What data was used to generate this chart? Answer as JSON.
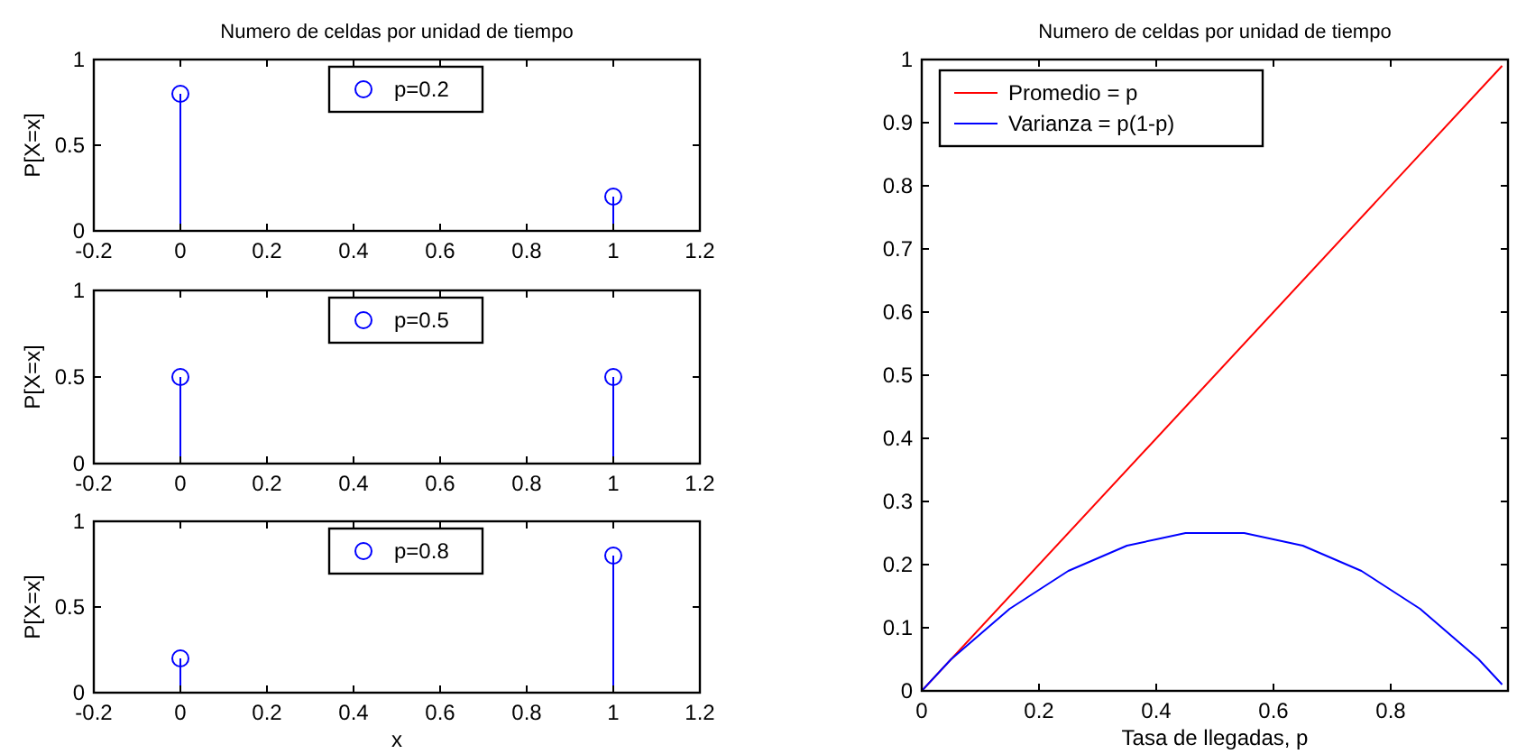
{
  "chart_data": [
    {
      "type": "lollipop",
      "title": "Numero de celdas por unidad de tiempo",
      "ylabel": "P[X=x]",
      "xlim": [
        -0.2,
        1.2
      ],
      "xticks": [
        -0.2,
        0,
        0.2,
        0.4,
        0.6,
        0.8,
        1,
        1.2
      ],
      "ylim": [
        0,
        1
      ],
      "yticks": [
        0,
        0.5,
        1
      ],
      "marker": "circle",
      "legend": "top",
      "series": [
        {
          "name": "p=0.2",
          "color": "#0000ff",
          "x": [
            0,
            1
          ],
          "values": [
            0.8,
            0.2
          ]
        }
      ]
    },
    {
      "type": "lollipop",
      "ylabel": "P[X=x]",
      "xlim": [
        -0.2,
        1.2
      ],
      "xticks": [
        -0.2,
        0,
        0.2,
        0.4,
        0.6,
        0.8,
        1,
        1.2
      ],
      "ylim": [
        0,
        1
      ],
      "yticks": [
        0,
        0.5,
        1
      ],
      "marker": "circle",
      "legend": "top",
      "series": [
        {
          "name": "p=0.5",
          "color": "#0000ff",
          "x": [
            0,
            1
          ],
          "values": [
            0.5,
            0.5
          ]
        }
      ]
    },
    {
      "type": "lollipop",
      "xlabel": "x",
      "ylabel": "P[X=x]",
      "xlim": [
        -0.2,
        1.2
      ],
      "xticks": [
        -0.2,
        0,
        0.2,
        0.4,
        0.6,
        0.8,
        1,
        1.2
      ],
      "ylim": [
        0,
        1
      ],
      "yticks": [
        0,
        0.5,
        1
      ],
      "marker": "circle",
      "legend": "top",
      "series": [
        {
          "name": "p=0.8",
          "color": "#0000ff",
          "x": [
            0,
            1
          ],
          "values": [
            0.2,
            0.8
          ]
        }
      ]
    },
    {
      "type": "line",
      "title": "Numero de celdas por unidad de tiempo",
      "xlabel": "Tasa de llegadas, p",
      "xlim": [
        0,
        1
      ],
      "xticks": [
        0,
        0.2,
        0.4,
        0.6,
        0.8
      ],
      "ylim": [
        0,
        1
      ],
      "yticks": [
        0,
        0.1,
        0.2,
        0.3,
        0.4,
        0.5,
        0.6,
        0.7,
        0.8,
        0.9,
        1
      ],
      "legend": "top left",
      "series": [
        {
          "name": "Promedio = p",
          "color": "#ff0000",
          "x": [
            0,
            0.99
          ],
          "values": [
            0,
            0.99
          ]
        },
        {
          "name": "Varianza = p(1-p)",
          "color": "#0000ff",
          "x": [
            0,
            0.05,
            0.1,
            0.15,
            0.2,
            0.25,
            0.3,
            0.35,
            0.4,
            0.45,
            0.5,
            0.55,
            0.6,
            0.65,
            0.7,
            0.75,
            0.8,
            0.85,
            0.9,
            0.95,
            0.99
          ],
          "values": [
            0,
            0.05,
            0.09,
            0.13,
            0.16,
            0.19,
            0.21,
            0.23,
            0.24,
            0.25,
            0.25,
            0.25,
            0.24,
            0.23,
            0.21,
            0.19,
            0.16,
            0.13,
            0.09,
            0.05,
            0.01
          ]
        }
      ]
    }
  ]
}
